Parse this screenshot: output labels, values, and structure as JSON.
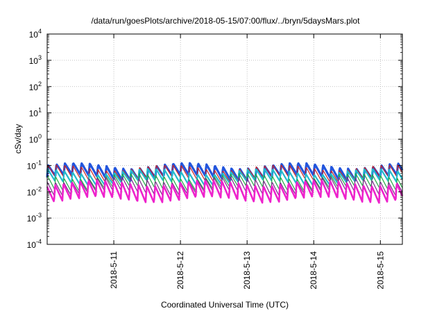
{
  "chart_data": {
    "type": "line",
    "title": "/data/run/goesPlots/archive/2018-05-15/07:00/flux/../bryn/5daysMars.plot",
    "xlabel": "Coordinated Universal Time (UTC)",
    "ylabel": "cSv/day",
    "yscale": "log",
    "ylim": [
      0.0001,
      10000
    ],
    "xlim_days": [
      10.0,
      15.33
    ],
    "y_ticks": [
      {
        "base": "10",
        "exp": "-4"
      },
      {
        "base": "10",
        "exp": "-3"
      },
      {
        "base": "10",
        "exp": "-2"
      },
      {
        "base": "10",
        "exp": "-1"
      },
      {
        "base": "10",
        "exp": "0"
      },
      {
        "base": "10",
        "exp": "1"
      },
      {
        "base": "10",
        "exp": "2"
      },
      {
        "base": "10",
        "exp": "3"
      },
      {
        "base": "10",
        "exp": "4"
      }
    ],
    "x_ticks": [
      {
        "label": "2018-5-11",
        "day": 11
      },
      {
        "label": "2018-5-12",
        "day": 12
      },
      {
        "label": "2018-5-13",
        "day": 13
      },
      {
        "label": "2018-5-14",
        "day": 14
      },
      {
        "label": "2018-5-15",
        "day": 15
      }
    ],
    "grid": true,
    "sawtooth_period_days": 0.125,
    "series": [
      {
        "color": "#2255dd",
        "peak": 0.1,
        "trough": 0.035,
        "width": 3.2
      },
      {
        "color": "#cc2222",
        "peak": 0.085,
        "trough": 0.03,
        "width": 1.2
      },
      {
        "color": "#22bbcc",
        "peak": 0.06,
        "trough": 0.022,
        "width": 2.2
      },
      {
        "color": "#22aa44",
        "peak": 0.04,
        "trough": 0.013,
        "width": 1.2
      },
      {
        "color": "#7b2a8a",
        "peak": 0.03,
        "trough": 0.009,
        "width": 1.2
      },
      {
        "color": "#ee22cc",
        "peak": 0.022,
        "trough": 0.005,
        "width": 2.6
      }
    ]
  }
}
